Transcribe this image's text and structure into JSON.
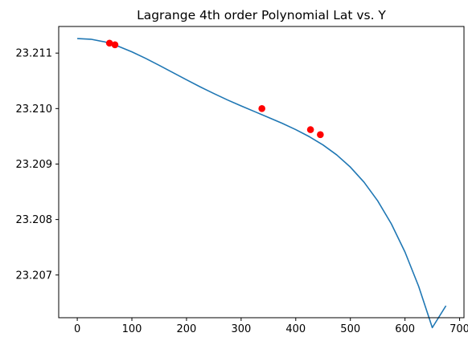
{
  "chart_data": {
    "type": "line",
    "title": "Lagrange 4th order Polynomial Lat vs. Y",
    "xlabel": "",
    "ylabel": "",
    "xlim": [
      -34,
      708
    ],
    "ylim": [
      23.20623,
      23.21148
    ],
    "xticks": [
      0,
      100,
      200,
      300,
      400,
      500,
      600,
      700
    ],
    "yticks": [
      23.207,
      23.208,
      23.209,
      23.21,
      23.211
    ],
    "ytick_labels": [
      "23.207",
      "23.208",
      "23.209",
      "23.210",
      "23.211"
    ],
    "grid": false,
    "legend": "none",
    "series": [
      {
        "kind": "line",
        "color": "#1f77b4",
        "x": [
          0,
          25,
          50,
          75,
          100,
          125,
          150,
          175,
          200,
          225,
          250,
          275,
          300,
          325,
          350,
          375,
          400,
          425,
          450,
          475,
          500,
          525,
          550,
          575,
          600,
          625,
          650,
          675
        ],
        "y": [
          23.211262,
          23.21125,
          23.211203,
          23.211124,
          23.211023,
          23.210906,
          23.210779,
          23.210649,
          23.210519,
          23.210392,
          23.210271,
          23.210156,
          23.210048,
          23.209944,
          23.209841,
          23.209735,
          23.209621,
          23.209493,
          23.209344,
          23.209165,
          23.208945,
          23.208673,
          23.208337,
          23.207922,
          23.207414,
          23.206796,
          23.206051,
          23.206445
        ]
      },
      {
        "kind": "points",
        "color": "#ff0000",
        "x": [
          59,
          69,
          338,
          427,
          445
        ],
        "y": [
          23.21118,
          23.21115,
          23.21,
          23.20962,
          23.20953
        ]
      }
    ]
  }
}
